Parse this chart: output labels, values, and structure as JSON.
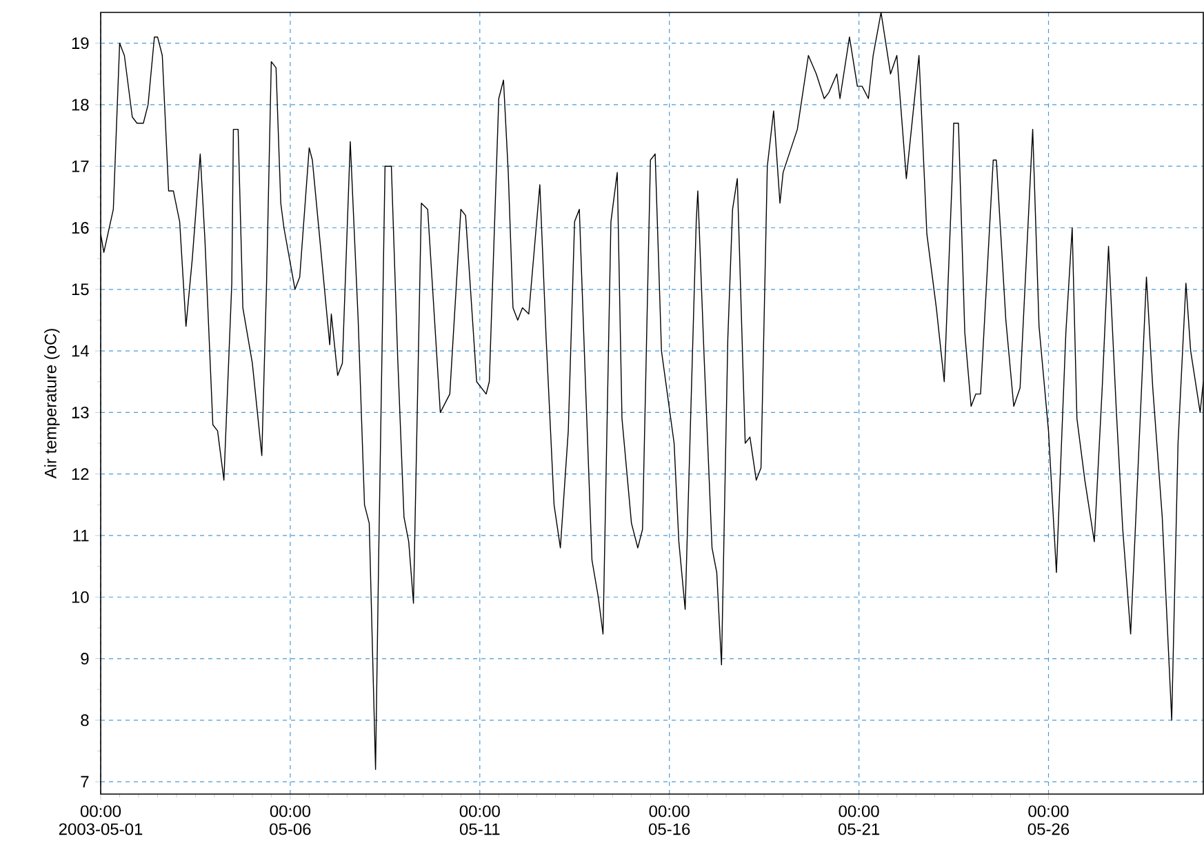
{
  "chart_data": {
    "type": "line",
    "ylabel": "Air temperature (oC)",
    "color": "#000000",
    "grid": true,
    "marker": "none",
    "line_style": "solid",
    "xlim": [
      "2003-05-01T00:00",
      "2003-05-30T02:00"
    ],
    "ylim": [
      6.8,
      19.5
    ],
    "yticks": [
      7,
      8,
      9,
      10,
      11,
      12,
      13,
      14,
      15,
      16,
      17,
      18,
      19
    ],
    "xticks": [
      {
        "value": "2003-05-01T00:00",
        "label": "00:00 2003-05-01"
      },
      {
        "value": "2003-05-06T00:00",
        "label": "00:00 05-06"
      },
      {
        "value": "2003-05-11T00:00",
        "label": "00:00 05-11"
      },
      {
        "value": "2003-05-16T00:00",
        "label": "00:00 05-16"
      },
      {
        "value": "2003-05-21T00:00",
        "label": "00:00 05-21"
      },
      {
        "value": "2003-05-26T00:00",
        "label": "00:00 05-26"
      }
    ],
    "x": [
      "2003-05-01T00:00",
      "2003-05-01T02:00",
      "2003-05-01T08:00",
      "2003-05-01T12:00",
      "2003-05-01T15:00",
      "2003-05-01T20:00",
      "2003-05-01T23:00",
      "2003-05-02T03:00",
      "2003-05-02T06:00",
      "2003-05-02T10:00",
      "2003-05-02T12:00",
      "2003-05-02T15:00",
      "2003-05-02T19:00",
      "2003-05-02T22:00",
      "2003-05-03T02:00",
      "2003-05-03T06:00",
      "2003-05-03T10:00",
      "2003-05-03T15:00",
      "2003-05-03T18:00",
      "2003-05-03T23:00",
      "2003-05-04T02:00",
      "2003-05-04T06:00",
      "2003-05-04T11:00",
      "2003-05-04T12:00",
      "2003-05-04T15:00",
      "2003-05-04T18:00",
      "2003-05-05T00:00",
      "2003-05-05T06:00",
      "2003-05-05T09:00",
      "2003-05-05T12:00",
      "2003-05-05T15:00",
      "2003-05-05T18:00",
      "2003-05-05T20:00",
      "2003-05-06T03:00",
      "2003-05-06T06:00",
      "2003-05-06T12:00",
      "2003-05-06T14:00",
      "2003-05-07T01:00",
      "2003-05-07T02:00",
      "2003-05-07T06:00",
      "2003-05-07T09:00",
      "2003-05-07T14:00",
      "2003-05-07T19:00",
      "2003-05-07T23:00",
      "2003-05-08T02:00",
      "2003-05-08T06:00",
      "2003-05-08T08:00",
      "2003-05-08T12:00",
      "2003-05-08T16:00",
      "2003-05-08T20:00",
      "2003-05-09T00:00",
      "2003-05-09T03:00",
      "2003-05-09T06:00",
      "2003-05-09T11:00",
      "2003-05-09T15:00",
      "2003-05-09T23:00",
      "2003-05-10T05:00",
      "2003-05-10T12:00",
      "2003-05-10T15:00",
      "2003-05-10T22:00",
      "2003-05-11T04:00",
      "2003-05-11T06:00",
      "2003-05-11T12:00",
      "2003-05-11T15:00",
      "2003-05-11T18:00",
      "2003-05-11T21:00",
      "2003-05-12T00:00",
      "2003-05-12T03:00",
      "2003-05-12T07:00",
      "2003-05-12T14:00",
      "2003-05-12T18:00",
      "2003-05-12T23:00",
      "2003-05-13T03:00",
      "2003-05-13T08:00",
      "2003-05-13T12:00",
      "2003-05-13T15:00",
      "2003-05-13T19:00",
      "2003-05-13T23:00",
      "2003-05-14T03:00",
      "2003-05-14T06:00",
      "2003-05-14T11:00",
      "2003-05-14T15:00",
      "2003-05-14T18:00",
      "2003-05-15T00:00",
      "2003-05-15T04:00",
      "2003-05-15T07:00",
      "2003-05-15T12:00",
      "2003-05-15T15:00",
      "2003-05-15T19:00",
      "2003-05-16T03:00",
      "2003-05-16T06:00",
      "2003-05-16T10:00",
      "2003-05-16T14:00",
      "2003-05-16T17:00",
      "2003-05-16T18:00",
      "2003-05-16T22:00",
      "2003-05-17T03:00",
      "2003-05-17T06:00",
      "2003-05-17T09:00",
      "2003-05-17T13:00",
      "2003-05-17T16:00",
      "2003-05-17T19:00",
      "2003-05-18T00:00",
      "2003-05-18T03:00",
      "2003-05-18T07:00",
      "2003-05-18T10:00",
      "2003-05-18T14:00",
      "2003-05-18T18:00",
      "2003-05-18T22:00",
      "2003-05-19T00:00",
      "2003-05-19T09:00",
      "2003-05-19T16:00",
      "2003-05-19T21:00",
      "2003-05-20T02:00",
      "2003-05-20T05:00",
      "2003-05-20T10:00",
      "2003-05-20T12:00",
      "2003-05-20T18:00",
      "2003-05-20T23:00",
      "2003-05-21T02:00",
      "2003-05-21T06:00",
      "2003-05-21T09:00",
      "2003-05-21T14:00",
      "2003-05-21T20:00",
      "2003-05-22T00:00",
      "2003-05-22T06:00",
      "2003-05-22T12:00",
      "2003-05-22T14:00",
      "2003-05-22T19:00",
      "2003-05-23T01:00",
      "2003-05-23T06:00",
      "2003-05-23T11:00",
      "2003-05-23T12:00",
      "2003-05-23T15:00",
      "2003-05-23T19:00",
      "2003-05-23T23:00",
      "2003-05-24T02:00",
      "2003-05-24T05:00",
      "2003-05-24T13:00",
      "2003-05-24T15:00",
      "2003-05-24T21:00",
      "2003-05-25T02:00",
      "2003-05-25T06:00",
      "2003-05-25T14:00",
      "2003-05-25T18:00",
      "2003-05-26T00:00",
      "2003-05-26T05:00",
      "2003-05-26T11:00",
      "2003-05-26T15:00",
      "2003-05-26T18:00",
      "2003-05-26T23:00",
      "2003-05-27T05:00",
      "2003-05-27T10:00",
      "2003-05-27T14:00",
      "2003-05-27T19:00",
      "2003-05-27T23:00",
      "2003-05-28T04:00",
      "2003-05-28T08:00",
      "2003-05-28T14:00",
      "2003-05-28T18:00",
      "2003-05-29T00:00",
      "2003-05-29T06:00",
      "2003-05-29T10:00",
      "2003-05-29T15:00",
      "2003-05-29T18:00",
      "2003-05-30T00:00",
      "2003-05-30T02:00"
    ],
    "values": [
      15.9,
      15.6,
      16.3,
      19.0,
      18.8,
      17.8,
      17.7,
      17.7,
      18.0,
      19.1,
      19.1,
      18.8,
      16.6,
      16.6,
      16.1,
      14.4,
      15.5,
      17.2,
      15.8,
      12.8,
      12.7,
      11.9,
      15.1,
      17.6,
      17.6,
      14.7,
      13.8,
      12.3,
      15.1,
      18.7,
      18.6,
      16.4,
      16.0,
      15.0,
      15.2,
      17.3,
      17.1,
      14.1,
      14.6,
      13.6,
      13.8,
      17.4,
      14.5,
      11.5,
      11.2,
      7.2,
      10.7,
      17.0,
      17.0,
      13.9,
      11.3,
      10.9,
      9.9,
      16.4,
      16.3,
      13.0,
      13.3,
      16.3,
      16.2,
      13.5,
      13.3,
      13.5,
      18.1,
      18.4,
      16.9,
      14.7,
      14.5,
      14.7,
      14.6,
      16.7,
      14.2,
      11.5,
      10.8,
      12.7,
      16.1,
      16.3,
      13.4,
      10.6,
      10.0,
      9.4,
      16.1,
      16.9,
      12.9,
      11.2,
      10.8,
      11.1,
      17.1,
      17.2,
      14.0,
      12.5,
      10.9,
      9.8,
      13.4,
      16.1,
      16.6,
      13.9,
      10.8,
      10.4,
      8.9,
      14.2,
      16.3,
      16.8,
      12.5,
      12.6,
      11.9,
      12.1,
      17.0,
      17.9,
      16.4,
      16.9,
      17.6,
      18.8,
      18.5,
      18.1,
      18.2,
      18.5,
      18.1,
      19.1,
      18.3,
      18.3,
      18.1,
      18.8,
      19.5,
      18.5,
      18.8,
      16.8,
      18.3,
      18.8,
      15.9,
      14.7,
      13.5,
      16.8,
      17.7,
      17.7,
      14.3,
      13.1,
      13.3,
      13.3,
      17.1,
      17.1,
      14.5,
      13.1,
      13.4,
      17.6,
      14.4,
      12.7,
      10.4,
      14.3,
      16.0,
      12.9,
      11.9,
      10.9,
      13.4,
      15.7,
      13.0,
      11.1,
      9.4,
      11.7,
      15.2,
      13.4,
      11.3,
      8.0,
      12.5,
      15.1,
      14.0,
      13.0,
      13.5
    ]
  }
}
